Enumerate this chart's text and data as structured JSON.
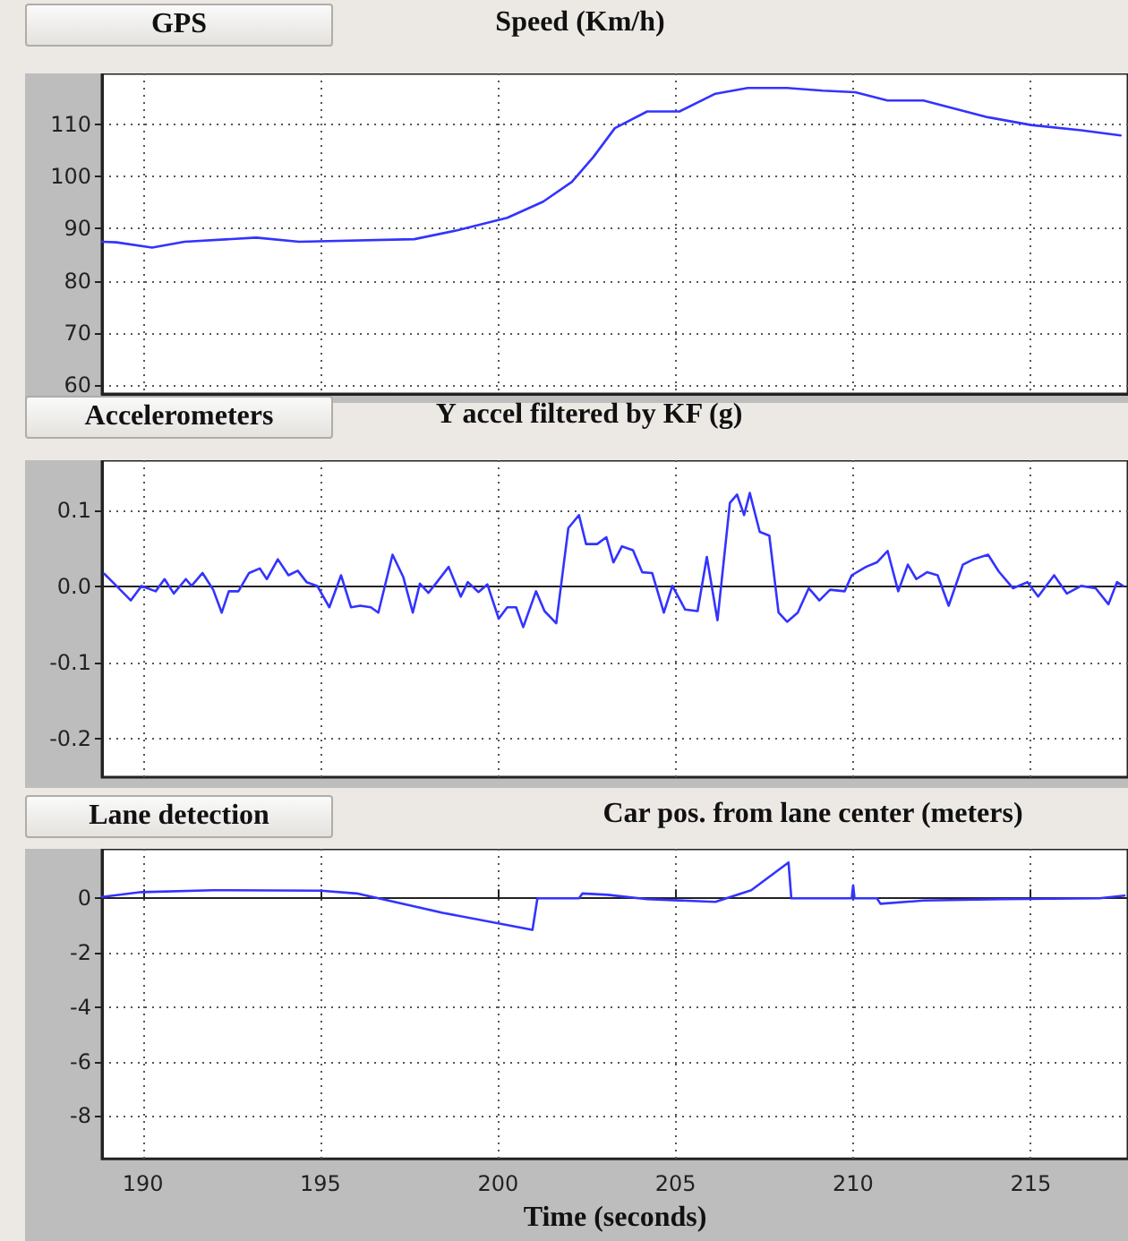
{
  "chart_data": [
    {
      "type": "line",
      "title": "Speed (Km/h)",
      "annotations": [
        "GPS"
      ],
      "color": "#3333ff",
      "grid": true,
      "tick_labels": "y",
      "xlim": [
        188.85,
        217.74
      ],
      "xticks": [
        190,
        195,
        200,
        205,
        210,
        215
      ],
      "ylim": [
        58.3,
        119.8
      ],
      "yticks": [
        60,
        70,
        80,
        90,
        100,
        110
      ],
      "x": [
        188.85,
        189.25,
        190.26,
        191.17,
        193.19,
        194.4,
        197.64,
        198.85,
        200.26,
        201.27,
        202.08,
        202.69,
        203.29,
        204.2,
        205.11,
        206.12,
        207.03,
        208.14,
        209.15,
        210.06,
        210.97,
        211.98,
        213.79,
        215.01,
        216.42,
        217.53
      ],
      "values": [
        87.5,
        87.4,
        86.4,
        87.5,
        88.3,
        87.5,
        88,
        89.7,
        92.1,
        95.2,
        99,
        103.8,
        109.3,
        112.5,
        112.5,
        115.9,
        117.0,
        117.0,
        116.5,
        116.2,
        114.6,
        114.6,
        111.4,
        109.9,
        108.9,
        107.9
      ]
    },
    {
      "type": "line",
      "title": "Y accel filtered by KF (g)",
      "annotations": [
        "Accelerometers"
      ],
      "color": "#3333ff",
      "grid": true,
      "tick_labels": "y",
      "xlim": [
        188.85,
        217.74
      ],
      "xticks": [
        190,
        195,
        200,
        205,
        210,
        215
      ],
      "ylim": [
        -0.25,
        0.166
      ],
      "yticks": [
        0.1,
        {
          "value": 0,
          "label": "0.0"
        },
        -0.1,
        -0.2
      ],
      "x": [
        188.91,
        189.15,
        189.66,
        189.96,
        190.36,
        190.61,
        190.87,
        191.21,
        191.37,
        191.68,
        191.98,
        192.22,
        192.42,
        192.69,
        192.99,
        193.29,
        193.49,
        193.8,
        194.1,
        194.36,
        194.61,
        194.91,
        195.25,
        195.58,
        195.86,
        196.12,
        196.42,
        196.63,
        197.03,
        197.33,
        197.6,
        197.8,
        198.04,
        198.28,
        198.61,
        198.95,
        199.15,
        199.45,
        199.7,
        200.02,
        200.26,
        200.51,
        200.71,
        201.07,
        201.31,
        201.64,
        201.98,
        202.28,
        202.48,
        202.79,
        203.05,
        203.25,
        203.49,
        203.8,
        204.06,
        204.34,
        204.67,
        204.91,
        205.27,
        205.62,
        205.88,
        206.18,
        206.53,
        206.73,
        206.93,
        207.09,
        207.37,
        207.64,
        207.9,
        208.14,
        208.44,
        208.75,
        209.05,
        209.35,
        209.76,
        209.96,
        210.36,
        210.67,
        210.97,
        211.27,
        211.54,
        211.78,
        212.08,
        212.38,
        212.69,
        213.09,
        213.39,
        213.8,
        214.1,
        214.5,
        214.91,
        215.21,
        215.66,
        216.02,
        216.42,
        216.83,
        217.19,
        217.43,
        217.6
      ],
      "values": [
        0.017,
        0.006,
        -0.018,
        0.001,
        -0.006,
        0.01,
        -0.009,
        0.01,
        0.001,
        0.018,
        -0.004,
        -0.034,
        -0.006,
        -0.006,
        0.018,
        0.024,
        0.01,
        0.036,
        0.015,
        0.021,
        0.006,
        0.001,
        -0.027,
        0.015,
        -0.027,
        -0.025,
        -0.027,
        -0.034,
        0.042,
        0.013,
        -0.034,
        0.004,
        -0.008,
        0.006,
        0.026,
        -0.013,
        0.006,
        -0.007,
        0.003,
        -0.042,
        -0.027,
        -0.027,
        -0.053,
        -0.006,
        -0.032,
        -0.048,
        0.077,
        0.094,
        0.056,
        0.056,
        0.065,
        0.032,
        0.053,
        0.048,
        0.019,
        0.018,
        -0.034,
        0.001,
        -0.03,
        -0.032,
        0.039,
        -0.044,
        0.11,
        0.121,
        0.094,
        0.123,
        0.072,
        0.067,
        -0.034,
        -0.046,
        -0.034,
        -0.002,
        -0.018,
        -0.004,
        -0.006,
        0.015,
        0.026,
        0.032,
        0.047,
        -0.006,
        0.029,
        0.01,
        0.019,
        0.015,
        -0.025,
        0.029,
        0.036,
        0.042,
        0.02,
        -0.002,
        0.006,
        -0.013,
        0.015,
        -0.009,
        0.001,
        -0.002,
        -0.023,
        0.006,
        0.001
      ]
    },
    {
      "type": "line",
      "title": "Car pos. from lane center (meters)",
      "annotations": [
        "Lane detection"
      ],
      "xlabel": "Time (seconds)",
      "color": "#3333ff",
      "grid": true,
      "xlim": [
        188.85,
        217.74
      ],
      "xticks": [
        190,
        195,
        200,
        205,
        210,
        215
      ],
      "ylim": [
        -9.57,
        1.82
      ],
      "yticks": [
        0,
        -2,
        -4,
        -6,
        -8
      ],
      "x": [
        188.85,
        189.96,
        191.98,
        195.01,
        196.02,
        198.44,
        200.97,
        201.11,
        202.28,
        202.38,
        203.09,
        204.2,
        206.12,
        207.13,
        208.18,
        208.26,
        209.96,
        210.0,
        210.04,
        210.67,
        210.77,
        211.98,
        214.2,
        216.93,
        217.64
      ],
      "values": [
        0.05,
        0.23,
        0.3,
        0.28,
        0.18,
        -0.53,
        -1.16,
        0,
        0,
        0.18,
        0.13,
        -0.03,
        -0.13,
        0.3,
        1.32,
        0,
        0,
        0.48,
        0,
        0,
        -0.2,
        -0.08,
        -0.03,
        0,
        0.1
      ]
    }
  ]
}
